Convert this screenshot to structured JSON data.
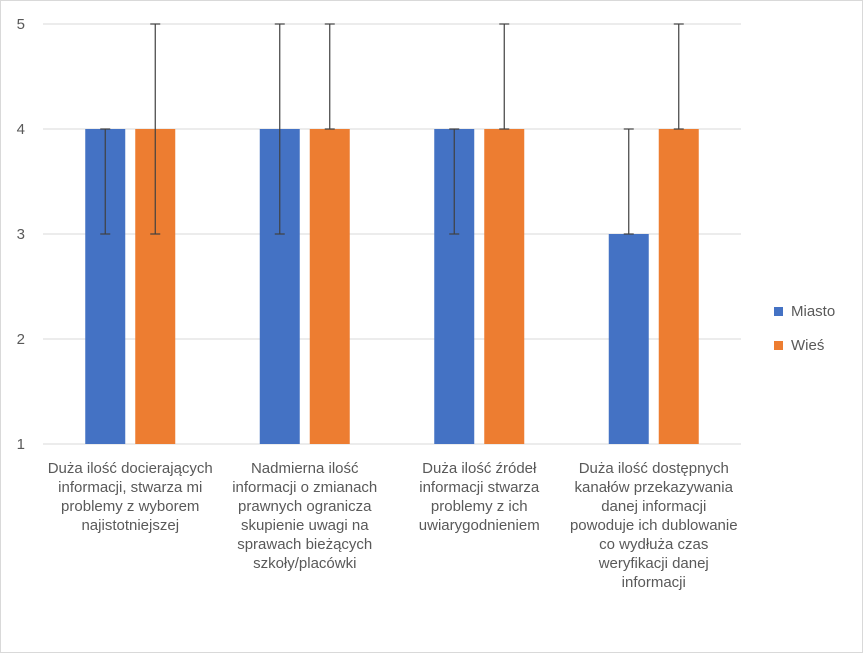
{
  "chart_data": {
    "type": "bar",
    "title": "",
    "xlabel": "",
    "ylabel": "",
    "ylim": [
      1,
      5
    ],
    "yticks": [
      1,
      2,
      3,
      4,
      5
    ],
    "grid": true,
    "legend_position": "right",
    "categories": [
      "Duża ilość docierających informacji, stwarza mi problemy z wyborem najistotniejszej",
      "Nadmierna ilość informacji o zmianach prawnych ogranicza skupienie uwagi na sprawach bieżących szkoły/placówki",
      "Duża ilość źródeł informacji stwarza problemy z ich uwiarygodnieniem",
      "Duża ilość dostępnych kanałów przekazywania danej informacji powoduje ich dublowanie co wydłuża czas weryfikacji danej informacji"
    ],
    "series": [
      {
        "name": "Miasto",
        "color": "#4472c4",
        "values": [
          4,
          4,
          4,
          3
        ],
        "error_low": [
          3,
          3,
          3,
          3
        ],
        "error_high": [
          4,
          5,
          4,
          4
        ]
      },
      {
        "name": "Wieś",
        "color": "#ed7d31",
        "values": [
          4,
          4,
          4,
          4
        ],
        "error_low": [
          3,
          4,
          4,
          4
        ],
        "error_high": [
          5,
          5,
          5,
          5
        ]
      }
    ]
  }
}
